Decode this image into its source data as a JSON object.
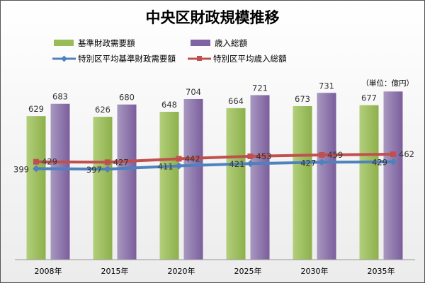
{
  "chart_data": {
    "type": "bar",
    "title": "中央区財政規模推移",
    "unit_note": "（単位：億円）",
    "categories": [
      "2008年",
      "2015年",
      "2020年",
      "2025年",
      "2030年",
      "2035年"
    ],
    "series": [
      {
        "name": "基準財政需要額",
        "kind": "bar",
        "color": "#9bbb59",
        "values": [
          629,
          626,
          648,
          664,
          673,
          677
        ]
      },
      {
        "name": "歳入総額",
        "kind": "bar",
        "color": "#8064a2",
        "values": [
          683,
          680,
          704,
          721,
          731,
          737
        ]
      },
      {
        "name": "特別区平均基準財政需要額",
        "kind": "line",
        "color": "#4f81bd",
        "values": [
          399,
          397,
          411,
          421,
          427,
          429
        ]
      },
      {
        "name": "特別区平均歳入総額",
        "kind": "line",
        "color": "#c0504d",
        "values": [
          429,
          427,
          442,
          453,
          459,
          462
        ]
      }
    ],
    "data_labels": [
      [
        "629",
        "626",
        "648",
        "664",
        "673",
        "677"
      ],
      [
        "683",
        "680",
        "704",
        "721",
        "731",
        ""
      ],
      [
        "399",
        "397",
        "411",
        "421",
        "427",
        "429"
      ],
      [
        "429",
        "427",
        "442",
        "453",
        "459",
        "462"
      ]
    ],
    "ylim": [
      0,
      800
    ],
    "grid": false,
    "legend_position": "top"
  }
}
